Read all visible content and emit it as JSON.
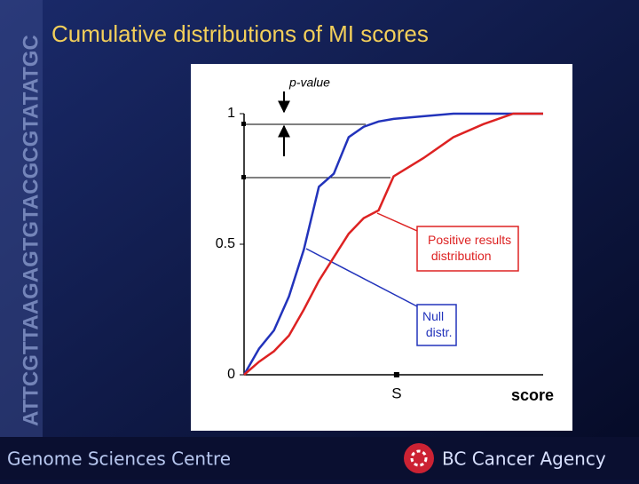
{
  "title": "Cumulative distributions of MI scores",
  "side_text": "ATTCGTTAAGAGTGTACGCGTATATGC",
  "footer_left": "Genome Sciences Centre",
  "footer_right": "BC Cancer Agency",
  "chart_data": {
    "type": "line",
    "x": [
      0,
      5,
      10,
      15,
      20,
      25,
      30,
      35,
      40,
      45,
      50,
      60,
      70,
      80,
      90,
      100
    ],
    "xlim": [
      0,
      100
    ],
    "xlabel": "score",
    "x_marker": {
      "label": "S",
      "value": 51
    },
    "ylim": [
      0,
      1
    ],
    "yticks": [
      0,
      0.5,
      1
    ],
    "series": [
      {
        "name": "Null distr.",
        "color": "#2233bb",
        "values": [
          0,
          0.1,
          0.17,
          0.3,
          0.48,
          0.72,
          0.77,
          0.91,
          0.95,
          0.97,
          0.98,
          0.99,
          1,
          1,
          1,
          1
        ]
      },
      {
        "name": "Positive results distribution",
        "color": "#dd2222",
        "values": [
          0,
          0.05,
          0.09,
          0.15,
          0.25,
          0.36,
          0.45,
          0.54,
          0.6,
          0.63,
          0.76,
          0.83,
          0.91,
          0.96,
          1,
          1
        ]
      }
    ],
    "annotation": "p-value"
  }
}
